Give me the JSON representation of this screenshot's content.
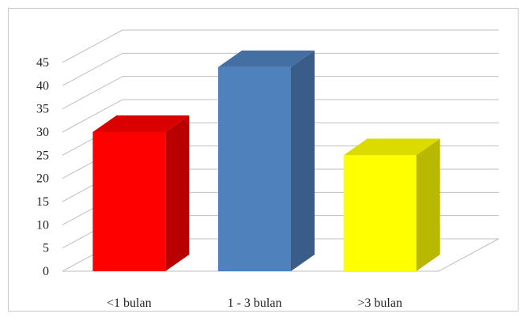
{
  "chart_data": {
    "type": "bar",
    "three_d": true,
    "categories": [
      "<1 bulan",
      "1 - 3 bulan",
      ">3 bulan"
    ],
    "values": [
      30,
      44,
      25
    ],
    "colors": [
      "#ff0000",
      "#4f81bd",
      "#ffff00"
    ],
    "ylim": [
      0,
      45
    ],
    "ytick_step": 5,
    "yticks": [
      "0",
      "5",
      "10",
      "15",
      "20",
      "25",
      "30",
      "35",
      "40",
      "45"
    ],
    "title": "",
    "xlabel": "",
    "ylabel": "",
    "grid": true,
    "legend": "none"
  }
}
